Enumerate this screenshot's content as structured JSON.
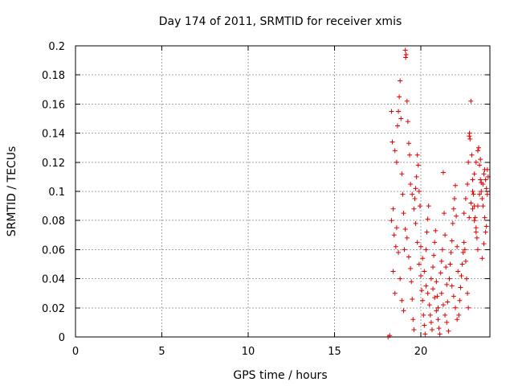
{
  "chart_data": {
    "type": "scatter",
    "title": "Day 174 of 2011, SRMTID for receiver xmis",
    "xlabel": "GPS time / hours",
    "ylabel": "SRMTID / TECUs",
    "xlim": [
      0,
      24
    ],
    "ylim": [
      0,
      0.2
    ],
    "x_ticks": [
      0,
      5,
      10,
      15,
      20
    ],
    "x_tick_labels": [
      "0",
      "5",
      "10",
      "15",
      "20"
    ],
    "y_ticks": [
      0,
      0.02,
      0.04,
      0.06,
      0.08,
      0.1,
      0.12,
      0.14,
      0.16,
      0.18,
      0.2
    ],
    "y_tick_labels": [
      "0",
      "0.02",
      "0.04",
      "0.06",
      "0.08",
      "0.1",
      "0.12",
      "0.14",
      "0.16",
      "0.18",
      "0.2"
    ],
    "grid": true,
    "marker": "plus",
    "series_color": "#e00000",
    "points": [
      [
        18.1,
        0.0
      ],
      [
        18.2,
        0.001
      ],
      [
        18.3,
        0.155
      ],
      [
        18.35,
        0.134
      ],
      [
        18.4,
        0.088
      ],
      [
        18.45,
        0.07
      ],
      [
        18.5,
        0.03
      ],
      [
        18.55,
        0.062
      ],
      [
        18.6,
        0.12
      ],
      [
        18.65,
        0.145
      ],
      [
        18.7,
        0.155
      ],
      [
        18.75,
        0.165
      ],
      [
        18.8,
        0.176
      ],
      [
        18.85,
        0.15
      ],
      [
        18.9,
        0.112
      ],
      [
        18.95,
        0.098
      ],
      [
        18.3,
        0.08
      ],
      [
        18.4,
        0.045
      ],
      [
        18.5,
        0.128
      ],
      [
        18.6,
        0.075
      ],
      [
        18.7,
        0.058
      ],
      [
        18.8,
        0.04
      ],
      [
        18.9,
        0.025
      ],
      [
        19.0,
        0.018
      ],
      [
        19.05,
        0.06
      ],
      [
        19.1,
        0.197
      ],
      [
        19.12,
        0.192
      ],
      [
        19.15,
        0.194
      ],
      [
        19.2,
        0.162
      ],
      [
        19.25,
        0.148
      ],
      [
        19.3,
        0.133
      ],
      [
        19.35,
        0.125
      ],
      [
        19.0,
        0.085
      ],
      [
        19.1,
        0.074
      ],
      [
        19.2,
        0.068
      ],
      [
        19.3,
        0.055
      ],
      [
        19.4,
        0.047
      ],
      [
        19.45,
        0.038
      ],
      [
        19.5,
        0.026
      ],
      [
        19.55,
        0.012
      ],
      [
        19.6,
        0.005
      ],
      [
        19.65,
        0.095
      ],
      [
        19.7,
        0.102
      ],
      [
        19.75,
        0.11
      ],
      [
        19.8,
        0.125
      ],
      [
        19.85,
        0.118
      ],
      [
        19.9,
        0.1
      ],
      [
        19.95,
        0.09
      ],
      [
        19.4,
        0.105
      ],
      [
        19.5,
        0.098
      ],
      [
        19.6,
        0.088
      ],
      [
        19.7,
        0.078
      ],
      [
        19.8,
        0.065
      ],
      [
        19.9,
        0.05
      ],
      [
        20.0,
        0.042
      ],
      [
        20.05,
        0.032
      ],
      [
        20.1,
        0.025
      ],
      [
        20.15,
        0.015
      ],
      [
        20.2,
        0.008
      ],
      [
        20.25,
        0.002
      ],
      [
        20.3,
        0.06
      ],
      [
        20.35,
        0.072
      ],
      [
        20.4,
        0.081
      ],
      [
        20.45,
        0.09
      ],
      [
        20.0,
        0.062
      ],
      [
        20.1,
        0.054
      ],
      [
        20.2,
        0.045
      ],
      [
        20.3,
        0.035
      ],
      [
        20.4,
        0.03
      ],
      [
        20.5,
        0.022
      ],
      [
        20.55,
        0.015
      ],
      [
        20.6,
        0.01
      ],
      [
        20.65,
        0.005
      ],
      [
        20.7,
        0.048
      ],
      [
        20.75,
        0.056
      ],
      [
        20.8,
        0.065
      ],
      [
        20.85,
        0.073
      ],
      [
        20.9,
        0.038
      ],
      [
        20.95,
        0.028
      ],
      [
        21.0,
        0.02
      ],
      [
        20.6,
        0.04
      ],
      [
        20.7,
        0.033
      ],
      [
        20.8,
        0.027
      ],
      [
        20.9,
        0.018
      ],
      [
        21.0,
        0.012
      ],
      [
        21.05,
        0.006
      ],
      [
        21.1,
        0.002
      ],
      [
        21.15,
        0.044
      ],
      [
        21.2,
        0.052
      ],
      [
        21.25,
        0.06
      ],
      [
        21.3,
        0.113
      ],
      [
        21.35,
        0.085
      ],
      [
        21.4,
        0.07
      ],
      [
        21.45,
        0.048
      ],
      [
        21.5,
        0.036
      ],
      [
        21.55,
        0.024
      ],
      [
        21.2,
        0.03
      ],
      [
        21.3,
        0.022
      ],
      [
        21.4,
        0.015
      ],
      [
        21.5,
        0.01
      ],
      [
        21.6,
        0.004
      ],
      [
        21.65,
        0.04
      ],
      [
        21.7,
        0.05
      ],
      [
        21.75,
        0.058
      ],
      [
        21.8,
        0.066
      ],
      [
        21.85,
        0.078
      ],
      [
        21.9,
        0.088
      ],
      [
        21.95,
        0.095
      ],
      [
        22.0,
        0.104
      ],
      [
        22.05,
        0.083
      ],
      [
        22.1,
        0.062
      ],
      [
        22.15,
        0.045
      ],
      [
        21.8,
        0.035
      ],
      [
        21.9,
        0.028
      ],
      [
        22.0,
        0.02
      ],
      [
        22.1,
        0.012
      ],
      [
        22.2,
        0.015
      ],
      [
        22.25,
        0.025
      ],
      [
        22.3,
        0.034
      ],
      [
        22.35,
        0.042
      ],
      [
        22.4,
        0.05
      ],
      [
        22.45,
        0.058
      ],
      [
        22.5,
        0.065
      ],
      [
        22.55,
        0.06
      ],
      [
        22.6,
        0.052
      ],
      [
        22.65,
        0.04
      ],
      [
        22.7,
        0.03
      ],
      [
        22.75,
        0.02
      ],
      [
        22.5,
        0.085
      ],
      [
        22.6,
        0.095
      ],
      [
        22.7,
        0.105
      ],
      [
        22.75,
        0.12
      ],
      [
        22.8,
        0.138
      ],
      [
        22.82,
        0.14
      ],
      [
        22.85,
        0.136
      ],
      [
        22.9,
        0.162
      ],
      [
        22.95,
        0.125
      ],
      [
        23.0,
        0.108
      ],
      [
        23.05,
        0.098
      ],
      [
        23.1,
        0.09
      ],
      [
        23.15,
        0.082
      ],
      [
        23.2,
        0.075
      ],
      [
        23.25,
        0.068
      ],
      [
        23.3,
        0.06
      ],
      [
        22.8,
        0.082
      ],
      [
        22.9,
        0.092
      ],
      [
        23.0,
        0.1
      ],
      [
        23.1,
        0.112
      ],
      [
        23.2,
        0.12
      ],
      [
        23.3,
        0.128
      ],
      [
        23.4,
        0.118
      ],
      [
        23.45,
        0.108
      ],
      [
        23.5,
        0.1
      ],
      [
        23.55,
        0.095
      ],
      [
        23.6,
        0.105
      ],
      [
        23.65,
        0.112
      ],
      [
        23.7,
        0.115
      ],
      [
        23.75,
        0.108
      ],
      [
        23.8,
        0.102
      ],
      [
        23.85,
        0.098
      ],
      [
        23.0,
        0.088
      ],
      [
        23.1,
        0.08
      ],
      [
        23.2,
        0.072
      ],
      [
        23.3,
        0.09
      ],
      [
        23.4,
        0.098
      ],
      [
        23.5,
        0.106
      ],
      [
        23.6,
        0.09
      ],
      [
        23.7,
        0.082
      ],
      [
        23.8,
        0.076
      ],
      [
        23.9,
        0.11
      ],
      [
        23.35,
        0.13
      ],
      [
        23.45,
        0.122
      ],
      [
        23.55,
        0.054
      ],
      [
        23.65,
        0.064
      ],
      [
        23.75,
        0.072
      ],
      [
        23.85,
        0.115
      ]
    ]
  }
}
